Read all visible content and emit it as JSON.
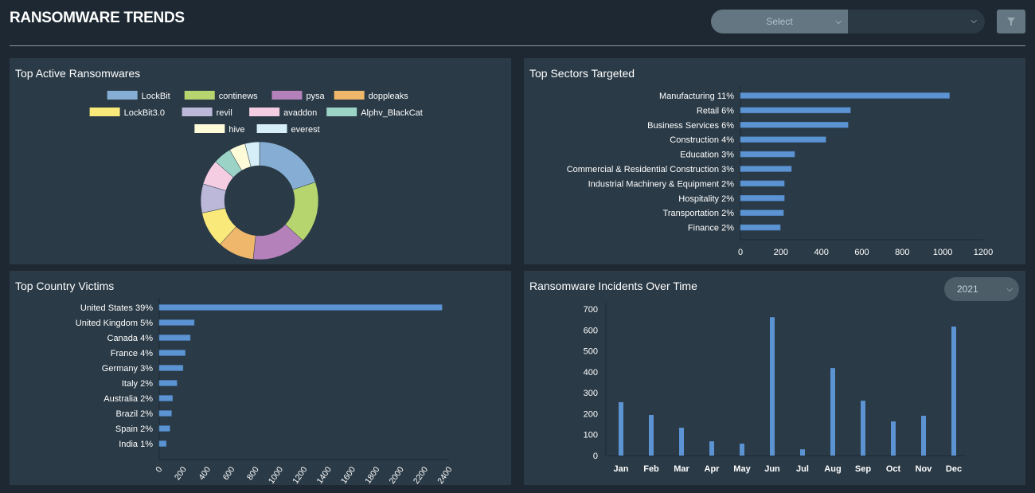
{
  "header": {
    "title": "RANSOMWARE TRENDS",
    "select_placeholder": "Select",
    "second_select_value": "",
    "filter_icon": "filter-icon"
  },
  "colors": {
    "bar": "#5b93d3",
    "panel": "#2a3a46",
    "background": "#1d2832"
  },
  "chart_data": [
    {
      "id": "ransomwares",
      "type": "pie",
      "variant": "donut",
      "title": "Top Active Ransomwares",
      "legend_position": "top",
      "labels": [
        "LockBit",
        "continews",
        "pysa",
        "doppleaks",
        "LockBit3.0",
        "revil",
        "avaddon",
        "Alphv_BlackCat",
        "hive",
        "everest"
      ],
      "values": [
        20,
        17,
        15,
        10,
        10,
        8,
        7,
        5,
        4.5,
        4
      ],
      "colors": [
        "#86aed4",
        "#b6d56e",
        "#b481ba",
        "#eeb76b",
        "#f9e97a",
        "#bcb8d9",
        "#f4cde2",
        "#9bd3c7",
        "#fefbd8",
        "#d6eef8"
      ]
    },
    {
      "id": "sectors",
      "type": "bar",
      "orientation": "horizontal",
      "title": "Top Sectors Targeted",
      "categories": [
        "Manufacturing 11%",
        "Retail 6%",
        "Business Services 6%",
        "Construction 4%",
        "Education 3%",
        "Commercial & Residential Construction 3%",
        "Industrial Machinery & Equipment 2%",
        "Hospitality 2%",
        "Transportation 2%",
        "Finance 2%"
      ],
      "values": [
        1033,
        544,
        532,
        422,
        268,
        252,
        217,
        217,
        213,
        197
      ],
      "xlim": [
        0,
        1200
      ],
      "xticks": [
        0,
        200,
        400,
        600,
        800,
        1000,
        1200
      ]
    },
    {
      "id": "countries",
      "type": "bar",
      "orientation": "horizontal",
      "title": "Top Country Victims",
      "categories": [
        "United States 39%",
        "United Kingdom 5%",
        "Canada 4%",
        "France 4%",
        "Germany 3%",
        "Italy 2%",
        "Australia 2%",
        "Brazil 2%",
        "Spain 2%",
        "India 1%"
      ],
      "values": [
        2342,
        290,
        257,
        215,
        197,
        147,
        110,
        102,
        88,
        58
      ],
      "xlim": [
        0,
        2400
      ],
      "xticks": [
        0,
        200,
        400,
        600,
        800,
        1000,
        1200,
        1400,
        1600,
        1800,
        2000,
        2200,
        2400
      ]
    },
    {
      "id": "incidents",
      "type": "bar",
      "title": "Ransomware Incidents Over Time",
      "year_select": "2021",
      "categories": [
        "Jan",
        "Feb",
        "Mar",
        "Apr",
        "May",
        "Jun",
        "Jul",
        "Aug",
        "Sep",
        "Oct",
        "Nov",
        "Dec"
      ],
      "values": [
        255,
        194,
        133,
        68,
        57,
        661,
        30,
        418,
        262,
        163,
        190,
        616
      ],
      "ylim": [
        0,
        700
      ],
      "yticks": [
        0,
        100,
        200,
        300,
        400,
        500,
        600,
        700
      ]
    }
  ]
}
